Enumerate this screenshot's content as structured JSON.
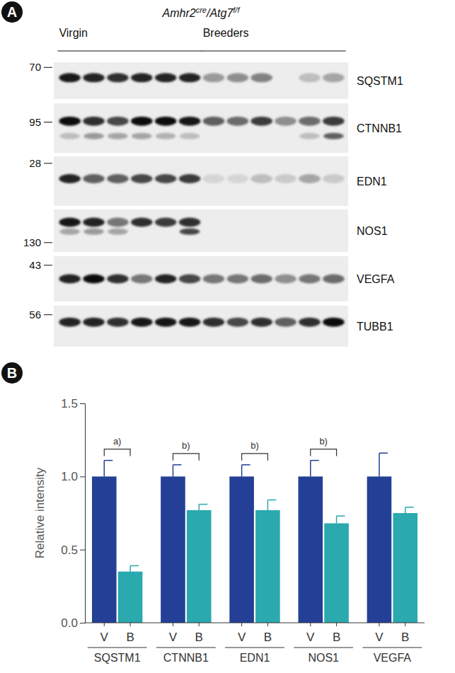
{
  "blot": {
    "panel": "A",
    "genotype": [
      "Amhr2",
      "cre",
      "/Atg7",
      "f/f"
    ],
    "groups": [
      {
        "label": "Virgin",
        "lanes": 6
      },
      {
        "label": "Breeders",
        "lanes": 6
      }
    ],
    "rows": [
      {
        "protein": "SQSTM1",
        "marker": 70,
        "bands": [
          0.9,
          0.85,
          0.8,
          0.85,
          0.85,
          0.85,
          0.35,
          0.4,
          0.45,
          0,
          0.2,
          0.3
        ]
      },
      {
        "protein": "CTNNB1",
        "marker": 95,
        "bands": [
          0.95,
          0.8,
          0.7,
          0.95,
          0.95,
          0.9,
          0.6,
          0.55,
          0.75,
          0.4,
          0.55,
          0.75
        ],
        "lower_bands": [
          0.2,
          0.35,
          0.3,
          0.3,
          0.25,
          0.2,
          0,
          0,
          0,
          0,
          0.2,
          0.6
        ]
      },
      {
        "protein": "EDN1",
        "marker": 28,
        "bands": [
          0.85,
          0.6,
          0.6,
          0.7,
          0.7,
          0.75,
          0.1,
          0.1,
          0.2,
          0.15,
          0.3,
          0.15
        ]
      },
      {
        "protein": "NOS1",
        "marker": 130,
        "bands": [
          0.9,
          0.85,
          0.5,
          0.8,
          0.75,
          0.8,
          0,
          0,
          0,
          0,
          0,
          0
        ],
        "lower_bands": [
          0.3,
          0.35,
          0.3,
          0,
          0,
          0.7,
          0,
          0,
          0,
          0,
          0,
          0
        ]
      },
      {
        "protein": "VEGFA",
        "marker": 43,
        "bands": [
          0.85,
          0.95,
          0.8,
          0.5,
          0.85,
          0.7,
          0.5,
          0.5,
          0.55,
          0.4,
          0.5,
          0.55
        ]
      },
      {
        "protein": "TUBB1",
        "marker": 56,
        "bands": [
          0.85,
          0.85,
          0.8,
          0.9,
          0.9,
          0.9,
          0.8,
          0.7,
          0.8,
          0.6,
          0.8,
          0.95
        ]
      }
    ]
  },
  "chart_data": {
    "panel": "B",
    "type": "bar",
    "categories": [
      "SQSTM1",
      "CTNNB1",
      "EDN1",
      "NOS1",
      "VEGFA"
    ],
    "series": [
      {
        "name": "V",
        "color": "#233f96",
        "values": [
          1.0,
          1.0,
          1.0,
          1.0,
          1.0
        ],
        "errors": [
          0.11,
          0.08,
          0.08,
          0.11,
          0.16
        ]
      },
      {
        "name": "B",
        "color": "#2aa9ae",
        "values": [
          0.35,
          0.77,
          0.77,
          0.68,
          0.75
        ],
        "errors": [
          0.04,
          0.04,
          0.07,
          0.05,
          0.04
        ]
      }
    ],
    "ylabel": "Relative intensity",
    "ylim": [
      0,
      1.5
    ],
    "yticks": [
      {
        "value": 0,
        "label": "0.0"
      },
      0.5,
      {
        "value": 1,
        "label": "1.0"
      },
      1.5
    ],
    "annotations": [
      {
        "text": "a)",
        "category": 0
      },
      {
        "text": "b)",
        "category": 1
      },
      {
        "text": "b)",
        "category": 2
      },
      {
        "text": "b)",
        "category": 3
      }
    ]
  }
}
